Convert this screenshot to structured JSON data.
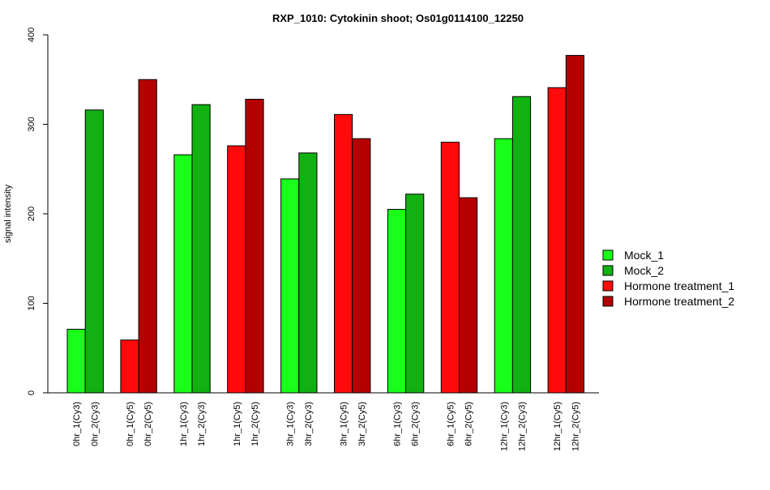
{
  "chart_data": {
    "type": "bar",
    "title": "RXP_1010: Cytokinin shoot; Os01g0114100_12250",
    "xlabel": "",
    "ylabel": "signal intensity",
    "ylim": [
      0,
      400
    ],
    "yticks": [
      0,
      100,
      200,
      300,
      400
    ],
    "grid": false,
    "legend_position": "right",
    "series": [
      {
        "name": "Mock_1",
        "color": "#19ff19"
      },
      {
        "name": "Mock_2",
        "color": "#11b111"
      },
      {
        "name": "Hormone treatment_1",
        "color": "#ff0a0a"
      },
      {
        "name": "Hormone treatment_2",
        "color": "#b50000"
      }
    ],
    "bars": [
      {
        "label": "0hr_1(Cy3)",
        "value": 71,
        "series": 0
      },
      {
        "label": "0hr_2(Cy3)",
        "value": 316,
        "series": 1
      },
      {
        "label": "0hr_1(Cy5)",
        "value": 59,
        "series": 2
      },
      {
        "label": "0hr_2(Cy5)",
        "value": 350,
        "series": 3
      },
      {
        "label": "1hr_1(Cy3)",
        "value": 266,
        "series": 0
      },
      {
        "label": "1hr_2(Cy3)",
        "value": 322,
        "series": 1
      },
      {
        "label": "1hr_1(Cy5)",
        "value": 276,
        "series": 2
      },
      {
        "label": "1hr_2(Cy5)",
        "value": 328,
        "series": 3
      },
      {
        "label": "3hr_1(Cy3)",
        "value": 239,
        "series": 0
      },
      {
        "label": "3hr_2(Cy3)",
        "value": 268,
        "series": 1
      },
      {
        "label": "3hr_1(Cy5)",
        "value": 311,
        "series": 2
      },
      {
        "label": "3hr_2(Cy5)",
        "value": 284,
        "series": 3
      },
      {
        "label": "6hr_1(Cy3)",
        "value": 205,
        "series": 0
      },
      {
        "label": "6hr_2(Cy3)",
        "value": 222,
        "series": 1
      },
      {
        "label": "6hr_1(Cy5)",
        "value": 280,
        "series": 2
      },
      {
        "label": "6hr_2(Cy5)",
        "value": 218,
        "series": 3
      },
      {
        "label": "12hr_1(Cy3)",
        "value": 284,
        "series": 0
      },
      {
        "label": "12hr_2(Cy3)",
        "value": 331,
        "series": 1
      },
      {
        "label": "12hr_1(Cy5)",
        "value": 341,
        "series": 2
      },
      {
        "label": "12hr_2(Cy5)",
        "value": 377,
        "series": 3
      }
    ]
  }
}
